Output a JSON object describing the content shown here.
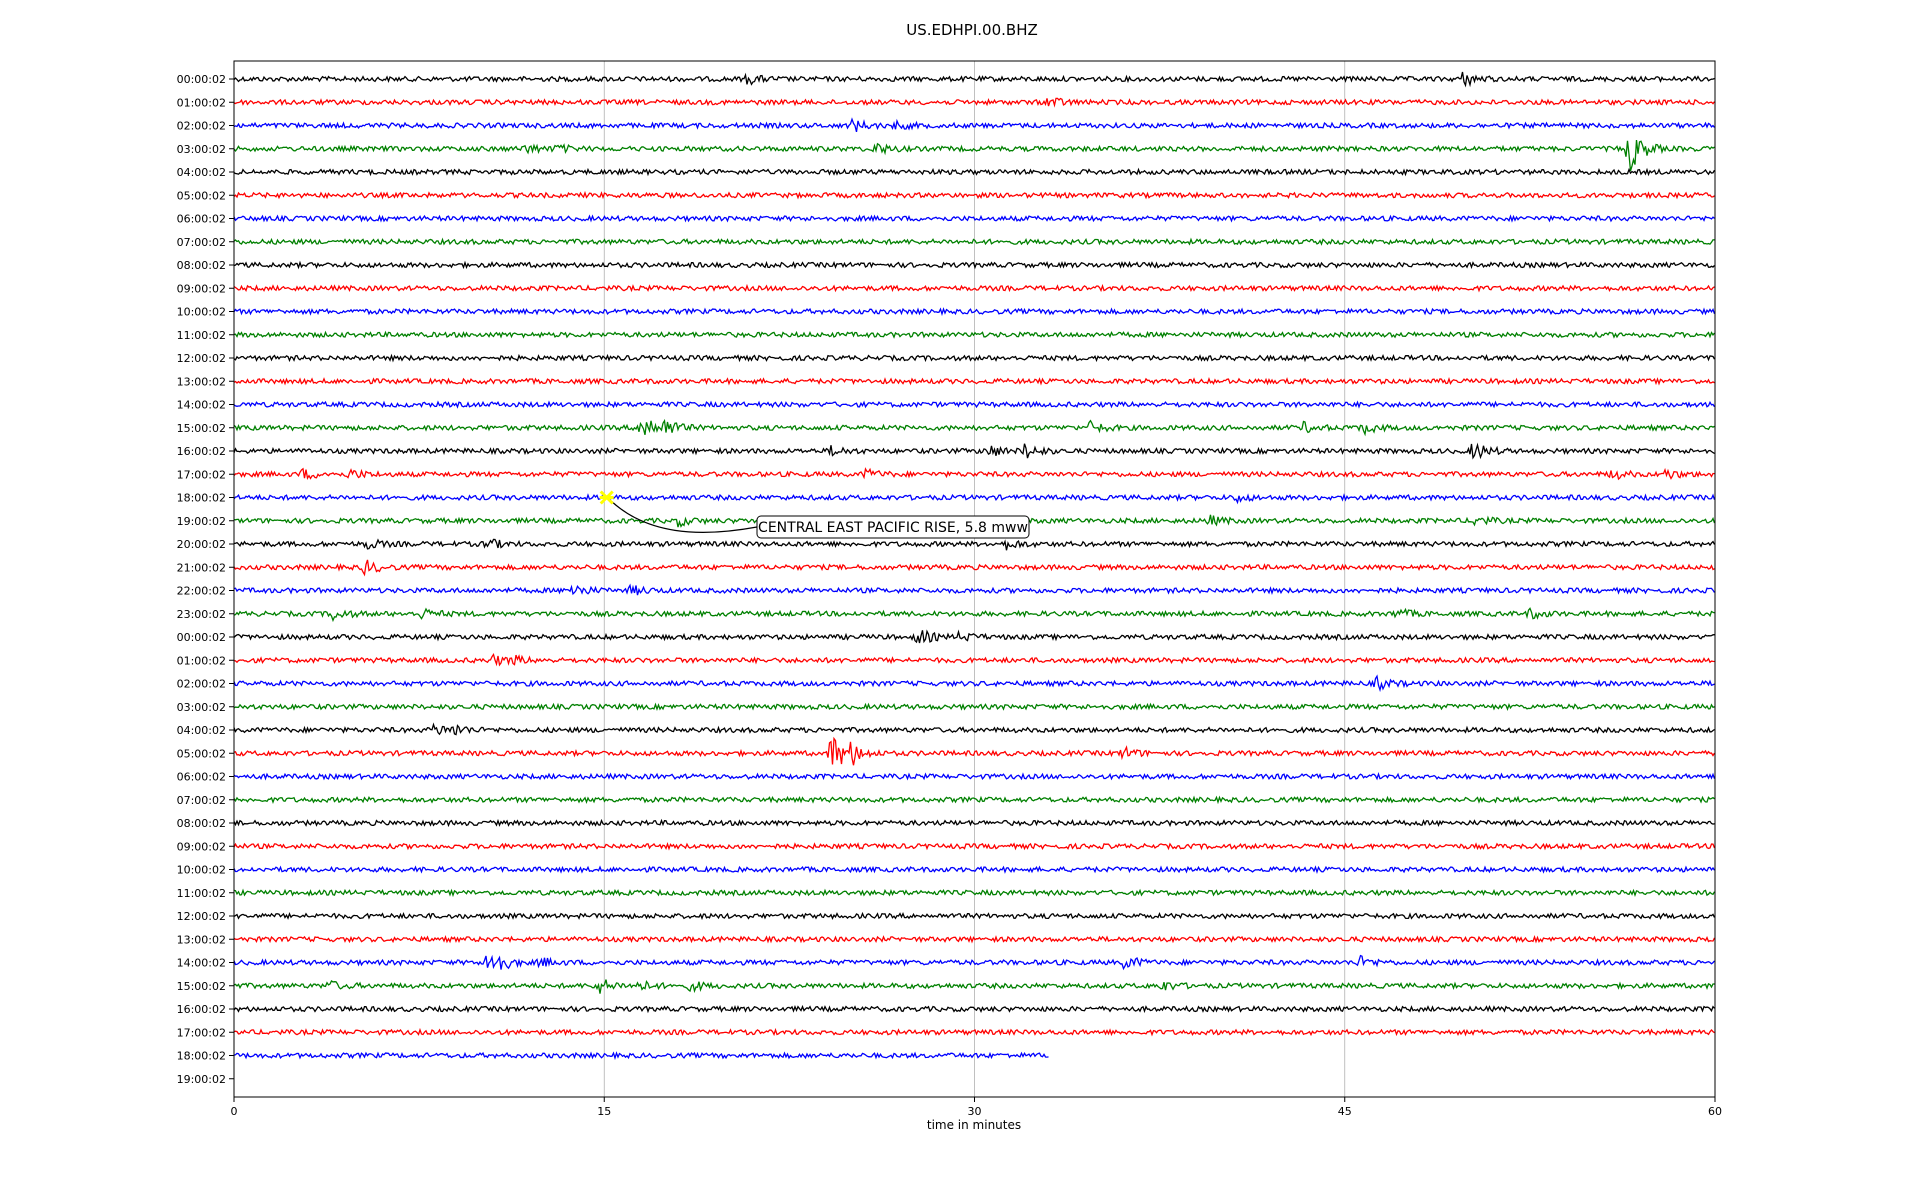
{
  "chart_data": {
    "type": "line",
    "title": "US.EDHPI.00.BHZ",
    "xlabel": "time in minutes",
    "ylabel": "",
    "xlim": [
      0,
      60
    ],
    "x_ticks": [
      "0",
      "15",
      "30",
      "45",
      "60"
    ],
    "x_tick_values": [
      0,
      15,
      30,
      45,
      60
    ],
    "grid_x": true,
    "row_labels": [
      "00:00:02",
      "01:00:02",
      "02:00:02",
      "03:00:02",
      "04:00:02",
      "05:00:02",
      "06:00:02",
      "07:00:02",
      "08:00:02",
      "09:00:02",
      "10:00:02",
      "11:00:02",
      "12:00:02",
      "13:00:02",
      "14:00:02",
      "15:00:02",
      "16:00:02",
      "17:00:02",
      "18:00:02",
      "19:00:02",
      "20:00:02",
      "21:00:02",
      "22:00:02",
      "23:00:02",
      "00:00:02",
      "01:00:02",
      "02:00:02",
      "03:00:02",
      "04:00:02",
      "05:00:02",
      "06:00:02",
      "07:00:02",
      "08:00:02",
      "09:00:02",
      "10:00:02",
      "11:00:02",
      "12:00:02",
      "13:00:02",
      "14:00:02",
      "15:00:02",
      "16:00:02",
      "17:00:02",
      "18:00:02",
      "19:00:02"
    ],
    "trace_colors": [
      "#000000",
      "#ff0000",
      "#0000ff",
      "#008000"
    ],
    "trace_count": 43,
    "last_trace_end_minute": 33.0,
    "event_bursts": [
      {
        "row": 0,
        "minute": 49.8,
        "amp": 0.6
      },
      {
        "row": 0,
        "minute": 20.8,
        "amp": 0.4
      },
      {
        "row": 1,
        "minute": 33.0,
        "amp": 0.5
      },
      {
        "row": 2,
        "minute": 25.0,
        "amp": 0.6
      },
      {
        "row": 2,
        "minute": 26.8,
        "amp": 0.3
      },
      {
        "row": 3,
        "minute": 56.5,
        "amp": 2.2
      },
      {
        "row": 3,
        "minute": 26.0,
        "amp": 0.5
      },
      {
        "row": 3,
        "minute": 11.8,
        "amp": 0.4
      },
      {
        "row": 3,
        "minute": 13.1,
        "amp": 0.3
      },
      {
        "row": 15,
        "minute": 16.5,
        "amp": 1.6
      },
      {
        "row": 15,
        "minute": 17.5,
        "amp": 0.7
      },
      {
        "row": 15,
        "minute": 34.7,
        "amp": 0.5
      },
      {
        "row": 15,
        "minute": 43.3,
        "amp": 0.4
      },
      {
        "row": 15,
        "minute": 45.7,
        "amp": 0.5
      },
      {
        "row": 16,
        "minute": 24.2,
        "amp": 0.4
      },
      {
        "row": 16,
        "minute": 30.5,
        "amp": 0.6
      },
      {
        "row": 16,
        "minute": 32.0,
        "amp": 0.7
      },
      {
        "row": 16,
        "minute": 50.2,
        "amp": 0.8
      },
      {
        "row": 17,
        "minute": 2.8,
        "amp": 0.4
      },
      {
        "row": 17,
        "minute": 4.7,
        "amp": 0.4
      },
      {
        "row": 17,
        "minute": 25.6,
        "amp": 0.4
      },
      {
        "row": 17,
        "minute": 55.8,
        "amp": 0.4
      },
      {
        "row": 17,
        "minute": 58.0,
        "amp": 0.4
      },
      {
        "row": 18,
        "minute": 40.5,
        "amp": 0.4
      },
      {
        "row": 19,
        "minute": 18.0,
        "amp": 0.4
      },
      {
        "row": 19,
        "minute": 39.5,
        "amp": 0.4
      },
      {
        "row": 19,
        "minute": 50.3,
        "amp": 0.4
      },
      {
        "row": 20,
        "minute": 5.4,
        "amp": 0.4
      },
      {
        "row": 20,
        "minute": 10.2,
        "amp": 0.5
      },
      {
        "row": 20,
        "minute": 31.3,
        "amp": 0.4
      },
      {
        "row": 21,
        "minute": 5.3,
        "amp": 0.6
      },
      {
        "row": 22,
        "minute": 13.7,
        "amp": 0.6
      },
      {
        "row": 22,
        "minute": 16.1,
        "amp": 0.4
      },
      {
        "row": 23,
        "minute": 4.0,
        "amp": 0.5
      },
      {
        "row": 23,
        "minute": 7.6,
        "amp": 0.4
      },
      {
        "row": 23,
        "minute": 47.1,
        "amp": 0.4
      },
      {
        "row": 23,
        "minute": 52.5,
        "amp": 0.4
      },
      {
        "row": 24,
        "minute": 27.7,
        "amp": 0.7
      },
      {
        "row": 24,
        "minute": 29.4,
        "amp": 0.4
      },
      {
        "row": 25,
        "minute": 10.5,
        "amp": 0.4
      },
      {
        "row": 25,
        "minute": 11.3,
        "amp": 0.3
      },
      {
        "row": 26,
        "minute": 46.3,
        "amp": 0.5
      },
      {
        "row": 28,
        "minute": 8.1,
        "amp": 0.5
      },
      {
        "row": 28,
        "minute": 8.9,
        "amp": 0.4
      },
      {
        "row": 29,
        "minute": 24.2,
        "amp": 2.0
      },
      {
        "row": 29,
        "minute": 25.0,
        "amp": 0.8
      },
      {
        "row": 29,
        "minute": 36.0,
        "amp": 0.5
      },
      {
        "row": 38,
        "minute": 10.3,
        "amp": 1.9
      },
      {
        "row": 38,
        "minute": 12.4,
        "amp": 0.4
      },
      {
        "row": 38,
        "minute": 36.1,
        "amp": 0.6
      },
      {
        "row": 38,
        "minute": 45.6,
        "amp": 0.5
      },
      {
        "row": 39,
        "minute": 14.7,
        "amp": 0.8
      },
      {
        "row": 39,
        "minute": 16.3,
        "amp": 0.5
      },
      {
        "row": 39,
        "minute": 3.8,
        "amp": 0.4
      },
      {
        "row": 39,
        "minute": 18.5,
        "amp": 0.4
      },
      {
        "row": 39,
        "minute": 37.6,
        "amp": 0.4
      }
    ],
    "annotations": [
      {
        "text": "CENTRAL EAST PACIFIC RISE, 5.8 mww",
        "row": 18,
        "minute": 15.1,
        "marker_color": "#ffff00"
      }
    ]
  }
}
